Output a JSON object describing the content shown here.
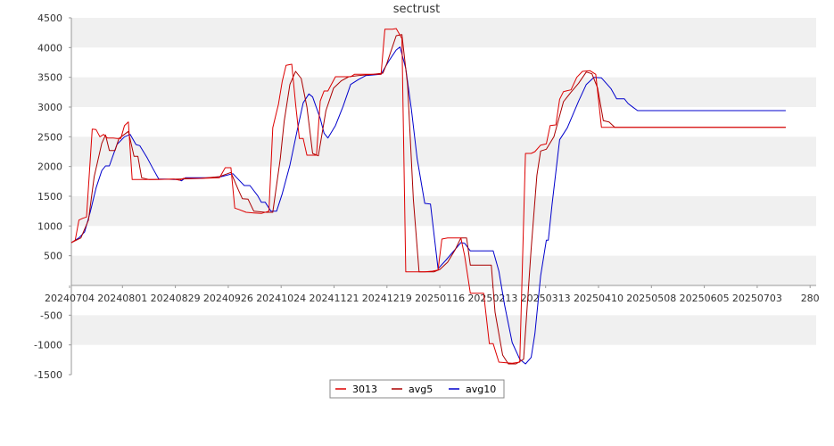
{
  "chart_data": {
    "type": "line",
    "title": "sectrust",
    "xlabel": "",
    "ylabel": "",
    "ylim": [
      -1500,
      4500
    ],
    "yticks": [
      4500,
      4000,
      3500,
      3000,
      2500,
      2000,
      1500,
      1000,
      500,
      -500,
      -1000,
      -1500
    ],
    "xlim": [
      "20240704",
      "20250731"
    ],
    "x_tick_labels": [
      "20240704",
      "20240801",
      "20240829",
      "20240926",
      "20241024",
      "20241121",
      "20241219",
      "20250116",
      "20250213",
      "20250313",
      "20250410",
      "20250508",
      "20250605",
      "20250703",
      "280"
    ],
    "grid": "horizontal bands",
    "legend_position": "bottom-center",
    "colors": {
      "3013": "#dd0000",
      "avg5": "#aa0000",
      "avg10": "#0000cc",
      "band": "#f0f0f0",
      "axis": "#999999"
    },
    "series": [
      {
        "name": "3013",
        "points": [
          [
            "20240704",
            720
          ],
          [
            "20240706",
            760
          ],
          [
            "20240708",
            1100
          ],
          [
            "20240710",
            1130
          ],
          [
            "20240712",
            1150
          ],
          [
            "20240715",
            2630
          ],
          [
            "20240717",
            2620
          ],
          [
            "20240719",
            2500
          ],
          [
            "20240721",
            2540
          ],
          [
            "20240723",
            2480
          ],
          [
            "20240726",
            2480
          ],
          [
            "20240728",
            2470
          ],
          [
            "20240730",
            2470
          ],
          [
            "20240801",
            2690
          ],
          [
            "20240803",
            2750
          ],
          [
            "20240805",
            1780
          ],
          [
            "20240807",
            1780
          ],
          [
            "20240817",
            1780
          ],
          [
            "20240827",
            1790
          ],
          [
            "20240830",
            1770
          ],
          [
            "20240901",
            1800
          ],
          [
            "20240910",
            1800
          ],
          [
            "20240920",
            1810
          ],
          [
            "20240923",
            1980
          ],
          [
            "20240926",
            1980
          ],
          [
            "20240928",
            1300
          ],
          [
            "20240930",
            1280
          ],
          [
            "20241004",
            1230
          ],
          [
            "20241008",
            1220
          ],
          [
            "20241012",
            1210
          ],
          [
            "20241016",
            1250
          ],
          [
            "20241018",
            2650
          ],
          [
            "20241021",
            3050
          ],
          [
            "20241023",
            3430
          ],
          [
            "20241025",
            3700
          ],
          [
            "20241028",
            3720
          ],
          [
            "20241030",
            3050
          ],
          [
            "20241101",
            2470
          ],
          [
            "20241103",
            2470
          ],
          [
            "20241105",
            2190
          ],
          [
            "20241110",
            2190
          ],
          [
            "20241112",
            3100
          ],
          [
            "20241114",
            3270
          ],
          [
            "20241116",
            3270
          ],
          [
            "20241120",
            3510
          ],
          [
            "20241124",
            3510
          ],
          [
            "20241128",
            3510
          ],
          [
            "20241130",
            3550
          ],
          [
            "20241210",
            3550
          ],
          [
            "20241214",
            3550
          ],
          [
            "20241216",
            4310
          ],
          [
            "20241220",
            4310
          ],
          [
            "20241222",
            4320
          ],
          [
            "20241225",
            4150
          ],
          [
            "20241227",
            230
          ],
          [
            "20241230",
            230
          ],
          [
            "20250106",
            230
          ],
          [
            "20250110",
            240
          ],
          [
            "20250113",
            260
          ],
          [
            "20250115",
            780
          ],
          [
            "20250118",
            800
          ],
          [
            "20250121",
            800
          ],
          [
            "20250125",
            800
          ],
          [
            "20250127",
            500
          ],
          [
            "20250130",
            -130
          ],
          [
            "20250201",
            -130
          ],
          [
            "20250206",
            -130
          ],
          [
            "20250209",
            -980
          ],
          [
            "20250211",
            -980
          ],
          [
            "20250214",
            -1290
          ],
          [
            "20250218",
            -1300
          ],
          [
            "20250221",
            -1310
          ],
          [
            "20250225",
            -1290
          ],
          [
            "20250228",
            2220
          ],
          [
            "20250303",
            2220
          ],
          [
            "20250305",
            2250
          ],
          [
            "20250308",
            2360
          ],
          [
            "20250311",
            2380
          ],
          [
            "20250313",
            2690
          ],
          [
            "20250316",
            2700
          ],
          [
            "20250318",
            3130
          ],
          [
            "20250320",
            3260
          ],
          [
            "20250324",
            3290
          ],
          [
            "20250327",
            3500
          ],
          [
            "20250330",
            3600
          ],
          [
            "20250403",
            3610
          ],
          [
            "20250406",
            3550
          ],
          [
            "20250409",
            2660
          ],
          [
            "20250412",
            2660
          ],
          [
            "20250420",
            2660
          ],
          [
            "20250501",
            2660
          ],
          [
            "20250601",
            2660
          ],
          [
            "20250701",
            2660
          ],
          [
            "20250715",
            2660
          ]
        ]
      },
      {
        "name": "avg5",
        "points": [
          [
            "20240704",
            720
          ],
          [
            "20240709",
            800
          ],
          [
            "20240713",
            1100
          ],
          [
            "20240716",
            1830
          ],
          [
            "20240720",
            2390
          ],
          [
            "20240722",
            2530
          ],
          [
            "20240724",
            2270
          ],
          [
            "20240727",
            2270
          ],
          [
            "20240729",
            2470
          ],
          [
            "20240803",
            2590
          ],
          [
            "20240806",
            2170
          ],
          [
            "20240808",
            2170
          ],
          [
            "20240810",
            1810
          ],
          [
            "20240814",
            1780
          ],
          [
            "20240830",
            1790
          ],
          [
            "20240910",
            1800
          ],
          [
            "20240920",
            1830
          ],
          [
            "20240926",
            1900
          ],
          [
            "20240930",
            1600
          ],
          [
            "20241002",
            1460
          ],
          [
            "20241005",
            1450
          ],
          [
            "20241008",
            1250
          ],
          [
            "20241014",
            1230
          ],
          [
            "20241018",
            1230
          ],
          [
            "20241022",
            2140
          ],
          [
            "20241024",
            2760
          ],
          [
            "20241027",
            3380
          ],
          [
            "20241030",
            3600
          ],
          [
            "20241102",
            3480
          ],
          [
            "20241105",
            3000
          ],
          [
            "20241108",
            2220
          ],
          [
            "20241111",
            2180
          ],
          [
            "20241115",
            2940
          ],
          [
            "20241119",
            3320
          ],
          [
            "20241123",
            3440
          ],
          [
            "20241127",
            3510
          ],
          [
            "20241202",
            3530
          ],
          [
            "20241210",
            3550
          ],
          [
            "20241215",
            3570
          ],
          [
            "20241217",
            3730
          ],
          [
            "20241222",
            4200
          ],
          [
            "20241225",
            4220
          ],
          [
            "20241228",
            3360
          ],
          [
            "20241231",
            1450
          ],
          [
            "20250103",
            230
          ],
          [
            "20250111",
            230
          ],
          [
            "20250114",
            270
          ],
          [
            "20250118",
            390
          ],
          [
            "20250122",
            600
          ],
          [
            "20250125",
            800
          ],
          [
            "20250128",
            800
          ],
          [
            "20250130",
            340
          ],
          [
            "20250206",
            340
          ],
          [
            "20250210",
            340
          ],
          [
            "20250212",
            -450
          ],
          [
            "20250216",
            -1170
          ],
          [
            "20250219",
            -1320
          ],
          [
            "20250223",
            -1320
          ],
          [
            "20250227",
            -1240
          ],
          [
            "20250303",
            620
          ],
          [
            "20250306",
            1850
          ],
          [
            "20250308",
            2260
          ],
          [
            "20250311",
            2290
          ],
          [
            "20250315",
            2500
          ],
          [
            "20250320",
            3090
          ],
          [
            "20250324",
            3250
          ],
          [
            "20250328",
            3400
          ],
          [
            "20250401",
            3590
          ],
          [
            "20250404",
            3560
          ],
          [
            "20250407",
            3320
          ],
          [
            "20250410",
            2770
          ],
          [
            "20250413",
            2750
          ],
          [
            "20250416",
            2660
          ],
          [
            "20250501",
            2660
          ],
          [
            "20250601",
            2660
          ],
          [
            "20250701",
            2660
          ],
          [
            "20250715",
            2660
          ]
        ]
      },
      {
        "name": "avg10",
        "points": [
          [
            "20240704",
            720
          ],
          [
            "20240708",
            800
          ],
          [
            "20240711",
            900
          ],
          [
            "20240714",
            1240
          ],
          [
            "20240717",
            1640
          ],
          [
            "20240720",
            1930
          ],
          [
            "20240722",
            2010
          ],
          [
            "20240724",
            2010
          ],
          [
            "20240728",
            2370
          ],
          [
            "20240801",
            2500
          ],
          [
            "20240804",
            2540
          ],
          [
            "20240807",
            2370
          ],
          [
            "20240809",
            2350
          ],
          [
            "20240813",
            2140
          ],
          [
            "20240816",
            1960
          ],
          [
            "20240819",
            1790
          ],
          [
            "20240822",
            1790
          ],
          [
            "20240827",
            1780
          ],
          [
            "20240829",
            1780
          ],
          [
            "20240831",
            1760
          ],
          [
            "20240902",
            1810
          ],
          [
            "20240915",
            1810
          ],
          [
            "20240921",
            1830
          ],
          [
            "20240927",
            1880
          ],
          [
            "20240930",
            1780
          ],
          [
            "20241003",
            1680
          ],
          [
            "20241006",
            1680
          ],
          [
            "20241010",
            1510
          ],
          [
            "20241012",
            1400
          ],
          [
            "20241014",
            1400
          ],
          [
            "20241017",
            1250
          ],
          [
            "20241020",
            1250
          ],
          [
            "20241023",
            1540
          ],
          [
            "20241027",
            2020
          ],
          [
            "20241031",
            2630
          ],
          [
            "20241103",
            3070
          ],
          [
            "20241106",
            3220
          ],
          [
            "20241108",
            3170
          ],
          [
            "20241112",
            2810
          ],
          [
            "20241114",
            2560
          ],
          [
            "20241116",
            2480
          ],
          [
            "20241120",
            2690
          ],
          [
            "20241124",
            3010
          ],
          [
            "20241128",
            3380
          ],
          [
            "20241202",
            3460
          ],
          [
            "20241206",
            3530
          ],
          [
            "20241214",
            3550
          ],
          [
            "20241218",
            3770
          ],
          [
            "20241222",
            3960
          ],
          [
            "20241224",
            4010
          ],
          [
            "20241227",
            3650
          ],
          [
            "20241230",
            2950
          ],
          [
            "20250102",
            2130
          ],
          [
            "20250106",
            1380
          ],
          [
            "20250109",
            1370
          ],
          [
            "20250113",
            280
          ],
          [
            "20250117",
            420
          ],
          [
            "20250121",
            570
          ],
          [
            "20250125",
            720
          ],
          [
            "20250127",
            710
          ],
          [
            "20250130",
            580
          ],
          [
            "20250211",
            580
          ],
          [
            "20250214",
            240
          ],
          [
            "20250217",
            -330
          ],
          [
            "20250221",
            -960
          ],
          [
            "20250225",
            -1240
          ],
          [
            "20250228",
            -1320
          ],
          [
            "20250303",
            -1210
          ],
          [
            "20250305",
            -810
          ],
          [
            "20250308",
            160
          ],
          [
            "20250311",
            760
          ],
          [
            "20250312",
            760
          ],
          [
            "20250314",
            1360
          ],
          [
            "20250318",
            2450
          ],
          [
            "20250322",
            2650
          ],
          [
            "20250328",
            3100
          ],
          [
            "20250401",
            3380
          ],
          [
            "20250405",
            3500
          ],
          [
            "20250409",
            3490
          ],
          [
            "20250414",
            3310
          ],
          [
            "20250417",
            3140
          ],
          [
            "20250421",
            3140
          ],
          [
            "20250423",
            3060
          ],
          [
            "20250425",
            3010
          ],
          [
            "20250428",
            2940
          ],
          [
            "20250501",
            2940
          ],
          [
            "20250601",
            2940
          ],
          [
            "20250701",
            2940
          ],
          [
            "20250715",
            2940
          ]
        ]
      }
    ]
  }
}
